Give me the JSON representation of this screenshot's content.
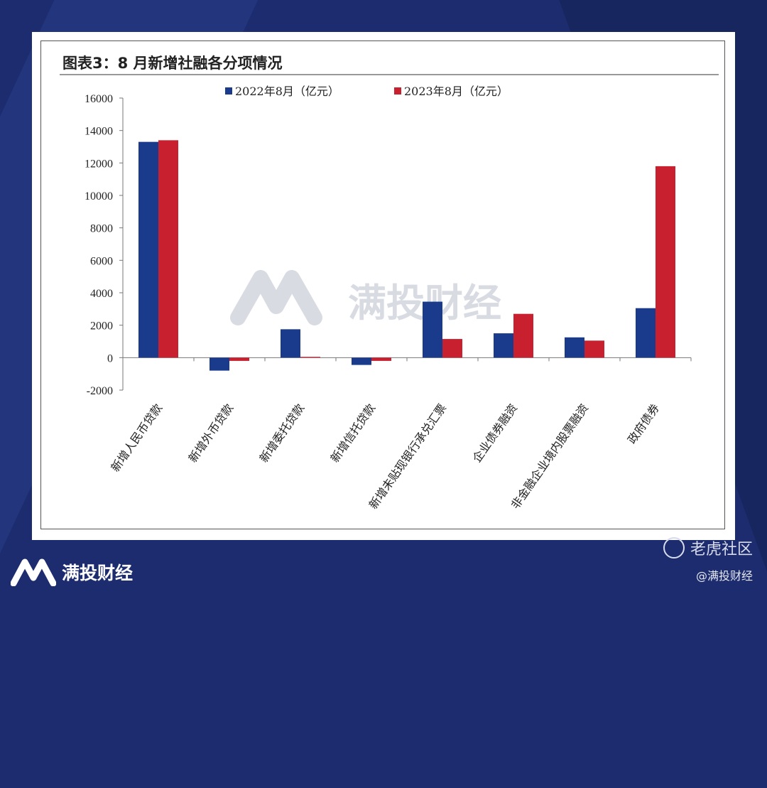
{
  "figure_title": "图表3：8 月新增社融各分项情况",
  "watermark": "满投财经",
  "brand": {
    "name": "满投财经"
  },
  "community": {
    "name": "老虎社区",
    "handle": "@满投财经"
  },
  "colors": {
    "series_2022": "#1a3b8c",
    "series_2023": "#c8202f",
    "background": "#1c2c6e"
  },
  "chart_data": {
    "type": "bar",
    "title": "",
    "xlabel": "",
    "ylabel": "",
    "ylim": [
      -2000,
      16000
    ],
    "yticks": [
      -2000,
      0,
      2000,
      4000,
      6000,
      8000,
      10000,
      12000,
      14000,
      16000
    ],
    "legend_position": "top",
    "categories": [
      "新增人民币贷款",
      "新增外币贷款",
      "新增委托贷款",
      "新增信托贷款",
      "新增未贴现银行承兑汇票",
      "企业债券融资",
      "非金融企业境内股票融资",
      "政府债券"
    ],
    "series": [
      {
        "name": "2022年8月（亿元）",
        "color": "#1a3b8c",
        "values": [
          13300,
          -800,
          1750,
          -450,
          3450,
          1500,
          1250,
          3050
        ]
      },
      {
        "name": "2023年8月（亿元）",
        "color": "#c8202f",
        "values": [
          13400,
          -200,
          50,
          -200,
          1150,
          2700,
          1050,
          11800
        ]
      }
    ]
  }
}
